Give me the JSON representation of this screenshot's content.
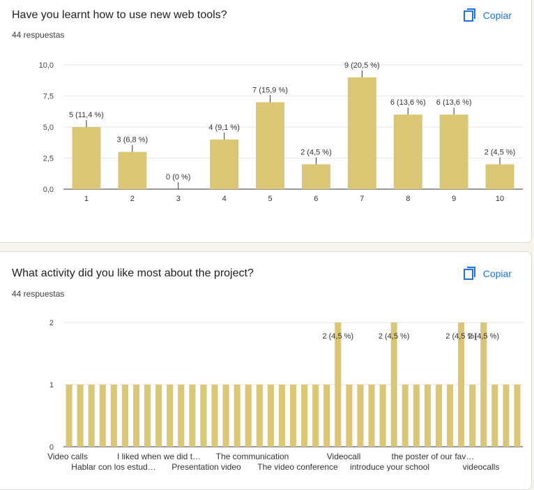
{
  "colors": {
    "bar": "#dbc675",
    "link": "#1a73e8",
    "grid": "#e6e6e6"
  },
  "copy_label": "Copiar",
  "copy_icon": "copy-icon",
  "q1": {
    "title": "Have you learnt how to use new web tools?",
    "responses": "44 respuestas",
    "chart_data": {
      "type": "bar",
      "categories": [
        "1",
        "2",
        "3",
        "4",
        "5",
        "6",
        "7",
        "8",
        "9",
        "10"
      ],
      "values": [
        5,
        3,
        0,
        4,
        7,
        2,
        9,
        6,
        6,
        2
      ],
      "data_labels": [
        "5 (11,4 %)",
        "3 (6,8 %)",
        "0 (0 %)",
        "4 (9,1 %)",
        "7 (15,9 %)",
        "2 (4,5 %)",
        "9 (20,5 %)",
        "6 (13,6 %)",
        "6 (13,6 %)",
        "2 (4,5 %)"
      ],
      "y_ticks": [
        "0,0",
        "2,5",
        "5,0",
        "7,5",
        "10,0"
      ],
      "ylim": [
        0,
        10
      ],
      "grid": true
    }
  },
  "q2": {
    "title": "What activity did you like most about the project?",
    "responses": "44 respuestas",
    "chart_data": {
      "type": "bar",
      "values": [
        1,
        1,
        1,
        1,
        1,
        1,
        1,
        1,
        1,
        1,
        1,
        1,
        1,
        1,
        1,
        1,
        1,
        1,
        1,
        1,
        1,
        1,
        1,
        1,
        2,
        1,
        1,
        1,
        1,
        2,
        1,
        1,
        1,
        1,
        1,
        2,
        1,
        2,
        1,
        1,
        1
      ],
      "y_ticks": [
        "0",
        "1",
        "2"
      ],
      "ylim": [
        0,
        2
      ],
      "grid": true,
      "highlighted_labels": [
        "2 (4,5 %)",
        "2 (4,5 %)",
        "2 (4,5 %)",
        "2 (4,5 %)"
      ],
      "x_labels_row1": [
        "Video calls",
        "I liked when we did t…",
        "The communication",
        "Videocall",
        "the poster of our fav…"
      ],
      "x_labels_row2": [
        "Hablar con los estud…",
        "Presentation video",
        "The video conference",
        "introduce your school",
        "videocalls"
      ]
    }
  }
}
